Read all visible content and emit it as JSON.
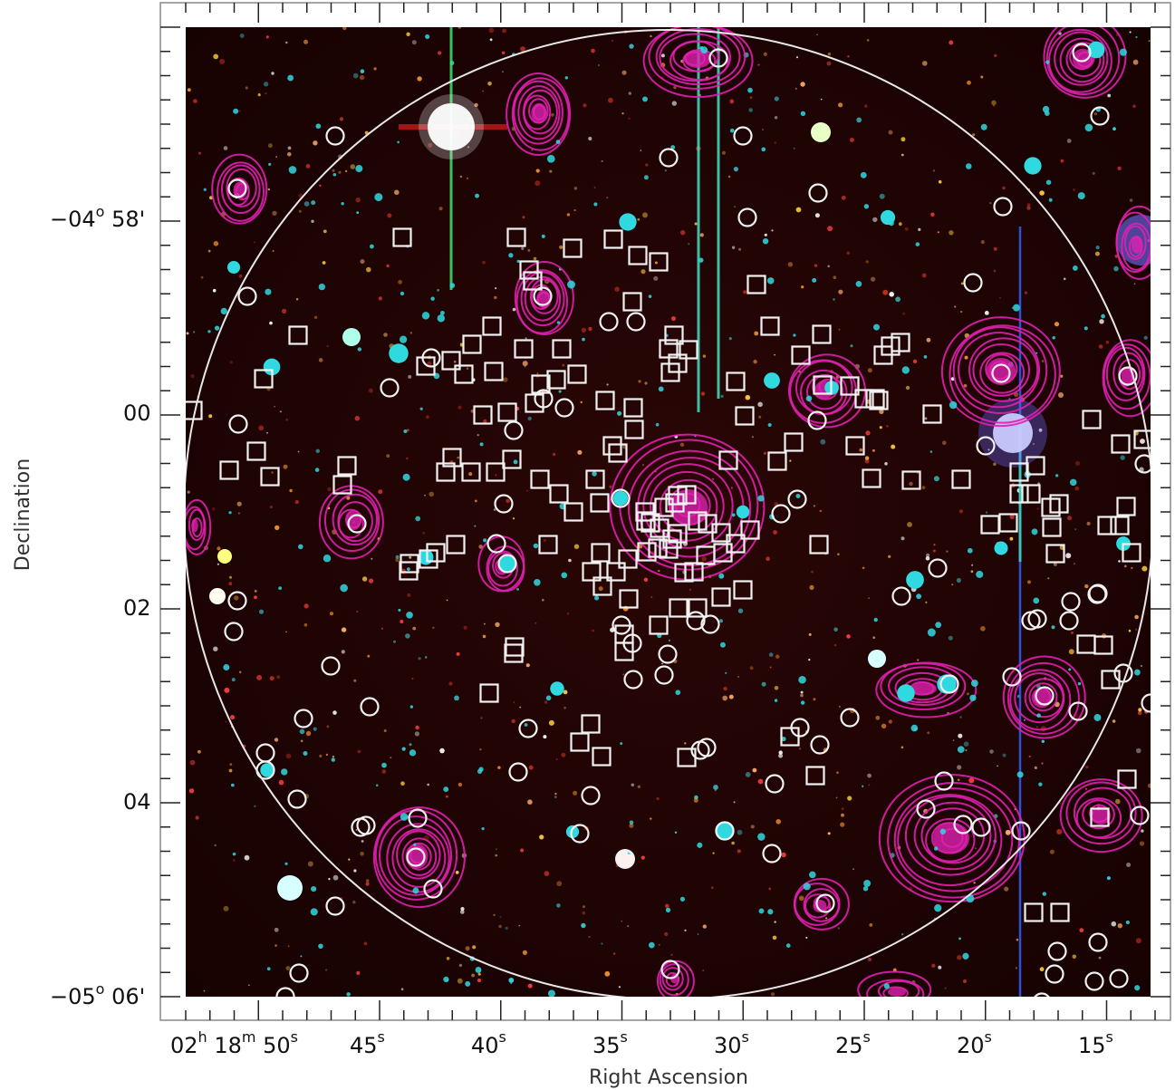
{
  "figure": {
    "xlabel": "Right Ascension",
    "ylabel": "Declination",
    "x_ticks": [
      {
        "h": "02",
        "m": "18",
        "s": "50"
      },
      {
        "s": "45"
      },
      {
        "s": "40"
      },
      {
        "s": "35"
      },
      {
        "s": "30"
      },
      {
        "s": "25"
      },
      {
        "s": "20"
      },
      {
        "s": "15"
      }
    ],
    "y_ticks": [
      {
        "deg": "−04",
        "min": "58"
      },
      {
        "min": "00"
      },
      {
        "min": "02"
      },
      {
        "min": "04"
      },
      {
        "deg": "−05",
        "min": "06"
      }
    ],
    "colors": {
      "sky_background": "#1e0404",
      "contour": "#e020b0",
      "markers": "#f2f2f2",
      "field_circle": "#e8e8e8",
      "cyan_sources": "#30d8e0"
    }
  }
}
